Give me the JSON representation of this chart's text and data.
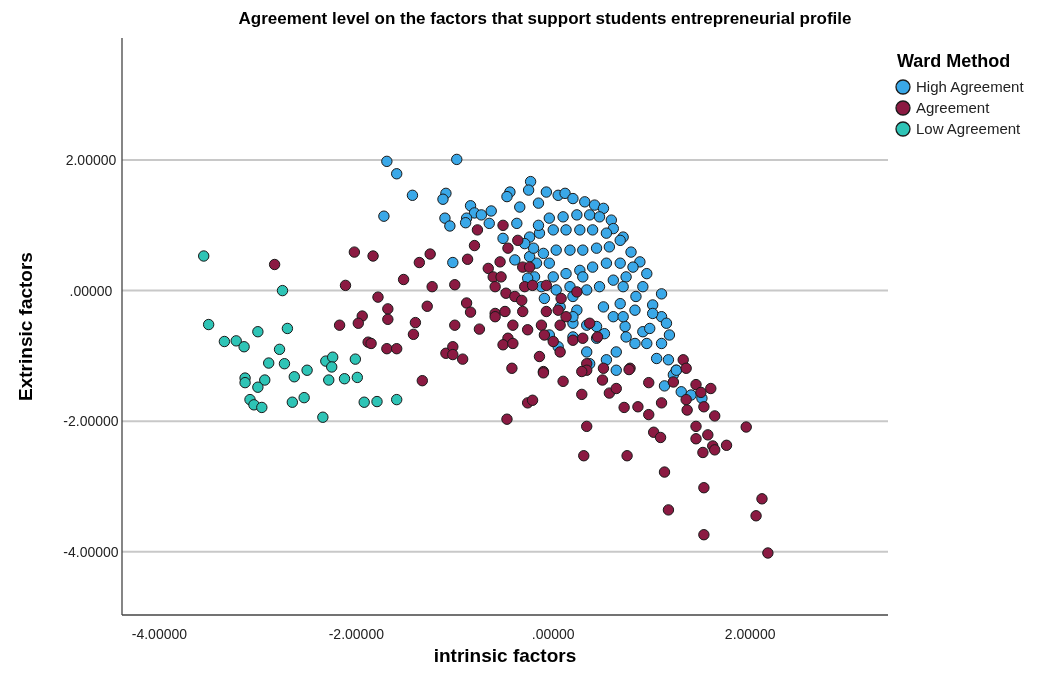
{
  "chart_data": {
    "type": "scatter",
    "title": "Agreement level on the factors that support students entrepreneurial profile",
    "xlabel": "intrinsic factors",
    "ylabel": "Extrinsic factors",
    "legend_title": "Ward Method",
    "legend": "top right",
    "grid": "y",
    "marker": "circle",
    "xlim": [
      -4.38,
      3.4
    ],
    "ylim": [
      -4.97,
      3.87
    ],
    "xticks": [
      {
        "value": -4,
        "label": "-4.00000"
      },
      {
        "value": -2,
        "label": "-2.00000"
      },
      {
        "value": 0,
        "label": ".00000"
      },
      {
        "value": 2,
        "label": "2.00000"
      }
    ],
    "yticks": [
      {
        "value": -4,
        "label": "-4.00000"
      },
      {
        "value": -2,
        "label": "-2.00000"
      },
      {
        "value": 0,
        "label": ".00000"
      },
      {
        "value": 2,
        "label": "2.00000"
      }
    ],
    "series": [
      {
        "name": "High Agreement",
        "color": "#3aa8e8",
        "x": [
          -1.69,
          -0.98,
          -1.59,
          -1.43,
          -1.09,
          -1.12,
          -1.72,
          -1.1,
          -1.05,
          -0.84,
          -0.8,
          -0.73,
          -0.63,
          -0.88,
          -0.89,
          -0.65,
          -1.02,
          -0.23,
          -0.25,
          -0.44,
          -0.47,
          -0.07,
          0.05,
          0.12,
          0.2,
          0.32,
          0.42,
          0.51,
          0.59,
          0.61,
          0.71,
          0.79,
          0.88,
          0.95,
          1.1,
          1.01,
          1.1,
          1.15,
          1.18,
          1.1,
          0.95,
          0.91,
          0.83,
          0.73,
          0.64,
          1.05,
          1.17,
          1.25,
          0.54,
          0.34,
          0.44,
          0.34,
          0.2,
          0.05,
          -0.04,
          0.07,
          0.2,
          0.34,
          0.47,
          0.61,
          0.74,
          0.81,
          0.68,
          0.54,
          0.4,
          0.27,
          0.13,
          0.0,
          -0.12,
          -0.19,
          -0.26,
          -0.17,
          -0.04,
          -0.1,
          0.03,
          0.17,
          0.3,
          0.44,
          0.57,
          0.68,
          0.54,
          0.4,
          0.27,
          0.13,
          0.0,
          -0.14,
          -0.24,
          -0.15,
          -0.04,
          0.1,
          0.24,
          0.37,
          0.47,
          -0.15,
          -0.34,
          -0.37,
          -0.51,
          -0.39,
          -0.24,
          -0.09,
          0.24,
          0.51,
          0.68,
          0.84,
          0.91,
          1.01,
          0.61,
          0.74,
          0.52,
          0.2,
          0.37,
          0.2,
          0.44,
          0.17,
          0.03,
          0.3,
          0.71,
          0.98,
          0.71,
          0.83,
          -0.2,
          -0.29,
          1.13,
          1.3,
          1.4,
          1.51,
          0.64,
          1.22,
          1.25
        ],
        "values": [
          1.98,
          2.01,
          1.79,
          1.46,
          1.49,
          1.4,
          1.14,
          1.11,
          0.99,
          1.3,
          1.19,
          1.16,
          1.22,
          1.11,
          1.04,
          1.03,
          0.43,
          1.67,
          1.54,
          1.51,
          1.44,
          1.51,
          1.46,
          1.49,
          1.41,
          1.36,
          1.31,
          1.26,
          1.08,
          0.95,
          0.82,
          0.59,
          0.44,
          0.26,
          -0.05,
          -0.22,
          -0.4,
          -0.5,
          -0.68,
          -0.81,
          -0.81,
          -0.63,
          -0.81,
          -0.55,
          -0.94,
          -1.04,
          -1.06,
          -1.22,
          -1.06,
          -0.94,
          -0.73,
          -0.53,
          -0.5,
          -0.86,
          -0.68,
          -0.25,
          -0.09,
          0.01,
          0.06,
          0.16,
          0.21,
          0.36,
          0.42,
          0.42,
          0.36,
          0.31,
          0.26,
          0.21,
          0.06,
          0.21,
          0.19,
          0.42,
          0.42,
          0.57,
          0.62,
          0.62,
          0.62,
          0.65,
          0.67,
          0.77,
          0.88,
          0.93,
          0.93,
          0.93,
          0.93,
          0.88,
          0.82,
          1.0,
          1.11,
          1.13,
          1.16,
          1.16,
          1.13,
          1.34,
          1.28,
          1.03,
          0.8,
          0.47,
          0.52,
          -0.12,
          -0.3,
          -0.25,
          -0.2,
          -0.09,
          0.06,
          -0.35,
          -0.4,
          -0.71,
          -0.66,
          -0.71,
          -1.12,
          -0.4,
          -0.55,
          0.06,
          0.01,
          0.21,
          0.06,
          -0.58,
          -0.4,
          -0.3,
          0.65,
          0.72,
          -1.46,
          -1.55,
          -1.6,
          -1.65,
          -1.22,
          -1.29,
          -1.22
        ]
      },
      {
        "name": "Agreement",
        "color": "#8b1a42",
        "x": [
          -2.83,
          -2.02,
          -1.83,
          -2.11,
          -1.36,
          -1.25,
          -1.52,
          -1.23,
          -1.0,
          -0.77,
          -0.8,
          -0.87,
          -1.78,
          -1.68,
          -1.68,
          -1.94,
          -1.98,
          -2.17,
          -1.28,
          -1.4,
          -1.42,
          -1.88,
          -1.85,
          -1.69,
          -1.59,
          -1.0,
          -0.88,
          -0.84,
          -0.75,
          -1.09,
          -1.02,
          -1.02,
          -0.92,
          -1.33,
          -0.66,
          -0.61,
          -0.59,
          -0.59,
          -0.59,
          -0.51,
          -0.46,
          -0.36,
          -0.54,
          -0.53,
          -0.31,
          -0.24,
          -0.29,
          -0.21,
          -0.07,
          -0.48,
          -0.39,
          -0.32,
          0.24,
          0.08,
          -0.31,
          -0.49,
          -0.07,
          0.05,
          0.13,
          -0.26,
          -0.41,
          -0.12,
          0.07,
          -0.46,
          -0.51,
          -0.41,
          -0.09,
          0.0,
          0.07,
          0.2,
          0.3,
          0.37,
          0.45,
          -0.14,
          -0.42,
          -0.1,
          0.34,
          0.34,
          0.51,
          0.78,
          1.32,
          1.35,
          -0.1,
          0.1,
          0.29,
          -0.26,
          -0.21,
          -0.47,
          0.34,
          0.31,
          0.75,
          0.57,
          0.64,
          0.72,
          0.86,
          0.97,
          0.97,
          1.1,
          1.02,
          1.09,
          1.13,
          1.17,
          1.22,
          1.45,
          1.5,
          1.6,
          1.35,
          1.36,
          1.53,
          1.64,
          1.45,
          1.57,
          1.45,
          1.62,
          1.64,
          1.52,
          1.76,
          1.96,
          1.53,
          1.53,
          2.12,
          2.06,
          2.18,
          0.29,
          0.5,
          0.77
        ],
        "values": [
          0.4,
          0.59,
          0.53,
          0.08,
          0.43,
          0.56,
          0.17,
          0.06,
          0.09,
          0.93,
          0.69,
          0.48,
          -0.1,
          -0.28,
          -0.44,
          -0.39,
          -0.5,
          -0.53,
          -0.24,
          -0.49,
          -0.67,
          -0.79,
          -0.81,
          -0.89,
          -0.89,
          -0.53,
          -0.19,
          -0.33,
          -0.59,
          -0.96,
          -0.86,
          -0.98,
          -1.05,
          -1.38,
          0.34,
          0.21,
          0.06,
          -0.35,
          -0.4,
          1.0,
          0.65,
          0.77,
          0.44,
          0.21,
          0.36,
          0.36,
          0.06,
          0.08,
          0.08,
          -0.04,
          -0.09,
          -0.15,
          -0.02,
          -0.12,
          -0.32,
          -0.32,
          -0.32,
          -0.3,
          -0.4,
          -0.6,
          -0.53,
          -0.53,
          -0.53,
          -0.73,
          -0.83,
          -0.81,
          -0.68,
          -0.78,
          -0.94,
          -0.76,
          -0.73,
          -0.5,
          -0.71,
          -1.01,
          -1.19,
          -1.24,
          -1.12,
          -1.22,
          -1.19,
          -1.19,
          -1.06,
          -1.19,
          -1.26,
          -1.39,
          -1.59,
          -1.72,
          -1.68,
          -1.97,
          -2.08,
          -2.53,
          -2.53,
          -1.57,
          -1.5,
          -1.79,
          -1.78,
          -1.9,
          -1.41,
          -1.72,
          -2.17,
          -2.25,
          -2.78,
          -3.36,
          -1.4,
          -1.44,
          -1.56,
          -1.5,
          -1.67,
          -1.83,
          -1.78,
          -1.92,
          -2.08,
          -2.21,
          -2.27,
          -2.38,
          -2.44,
          -2.48,
          -2.37,
          -2.09,
          -3.02,
          -3.74,
          -3.19,
          -3.45,
          -4.02,
          -1.24,
          -1.37,
          -1.21
        ]
      },
      {
        "name": "Low Agreement",
        "color": "#2ec4b6",
        "x": [
          -3.55,
          -2.75,
          -3.5,
          -3.0,
          -2.7,
          -3.34,
          -3.22,
          -3.14,
          -2.78,
          -2.89,
          -2.73,
          -3.13,
          -3.13,
          -2.93,
          -3.0,
          -2.63,
          -2.5,
          -2.31,
          -2.24,
          -2.25,
          -2.01,
          -2.28,
          -2.12,
          -1.99,
          -3.08,
          -3.04,
          -2.96,
          -2.65,
          -2.53,
          -1.92,
          -1.79,
          -1.59,
          -2.34
        ],
        "values": [
          0.53,
          0.0,
          -0.52,
          -0.63,
          -0.58,
          -0.78,
          -0.77,
          -0.86,
          -0.9,
          -1.11,
          -1.12,
          -1.34,
          -1.41,
          -1.37,
          -1.48,
          -1.32,
          -1.22,
          -1.08,
          -1.02,
          -1.17,
          -1.05,
          -1.37,
          -1.35,
          -1.33,
          -1.67,
          -1.75,
          -1.79,
          -1.71,
          -1.64,
          -1.71,
          -1.7,
          -1.67,
          -1.94
        ]
      }
    ]
  }
}
